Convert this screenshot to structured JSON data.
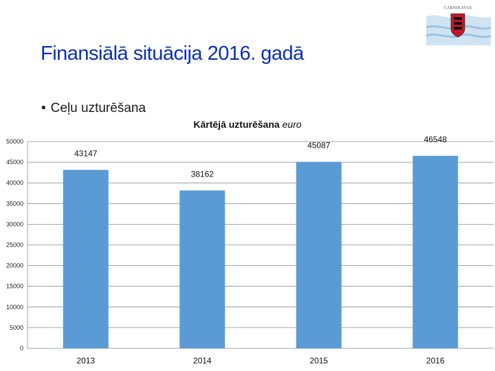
{
  "header": {
    "logo_caption": "CARNIKAVAS",
    "title": "Finansiālā situācija 2016. gadā"
  },
  "bullet": {
    "symbol": "•",
    "text": "Ceļu uzturēšana"
  },
  "chart_data": {
    "type": "bar",
    "title_main": "Kārtējā uzturēšana",
    "title_unit": "euro",
    "categories": [
      "2013",
      "2014",
      "2015",
      "2016"
    ],
    "values": [
      43147,
      38162,
      45087,
      46548
    ],
    "data_labels": [
      "43147",
      "38162",
      "45087",
      "46548"
    ],
    "ylim": [
      0,
      50000
    ],
    "yticks": [
      0,
      5000,
      10000,
      15000,
      20000,
      25000,
      30000,
      35000,
      40000,
      45000,
      50000
    ],
    "xlabel": "",
    "ylabel": "",
    "bar_color": "#5b9bd5",
    "gridlines": true
  }
}
